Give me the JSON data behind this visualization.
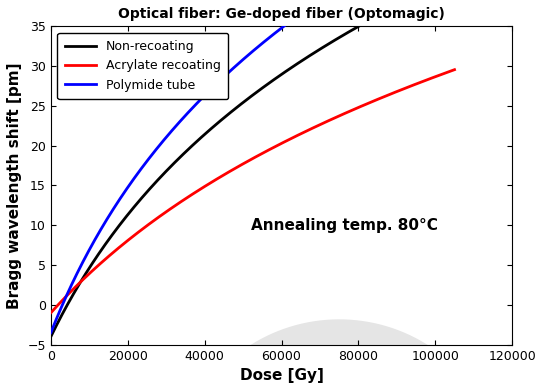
{
  "title": "Optical fiber: Ge-doped fiber (Optomagic)",
  "xlabel": "Dose [Gy]",
  "ylabel": "Bragg wavelength shift [pm]",
  "annotation": "Annealing temp. 80°C",
  "xlim": [
    0,
    120000
  ],
  "ylim": [
    -5,
    35
  ],
  "xticks": [
    0,
    20000,
    40000,
    60000,
    80000,
    100000,
    120000
  ],
  "yticks": [
    -5,
    0,
    5,
    10,
    15,
    20,
    25,
    30,
    35
  ],
  "legend": [
    "Non-recoating",
    "Acrylate recoating",
    "Polymide tube"
  ],
  "line_colors": [
    "#000000",
    "#ff0000",
    "#0000ff"
  ],
  "line_width": 2.0,
  "dose_max": 105000,
  "non_recoating_params": {
    "a": 3.0,
    "b": 30000,
    "c": -4.0
  },
  "acrylate_params": {
    "a": 2.7,
    "b": 50000,
    "c": -1.0
  },
  "polyimide_params": {
    "a": 3.2,
    "b": 26000,
    "c": -3.5
  },
  "background_color": "#ffffff",
  "title_fontsize": 10,
  "label_fontsize": 11,
  "tick_fontsize": 9,
  "legend_fontsize": 9,
  "annotation_fontsize": 11
}
